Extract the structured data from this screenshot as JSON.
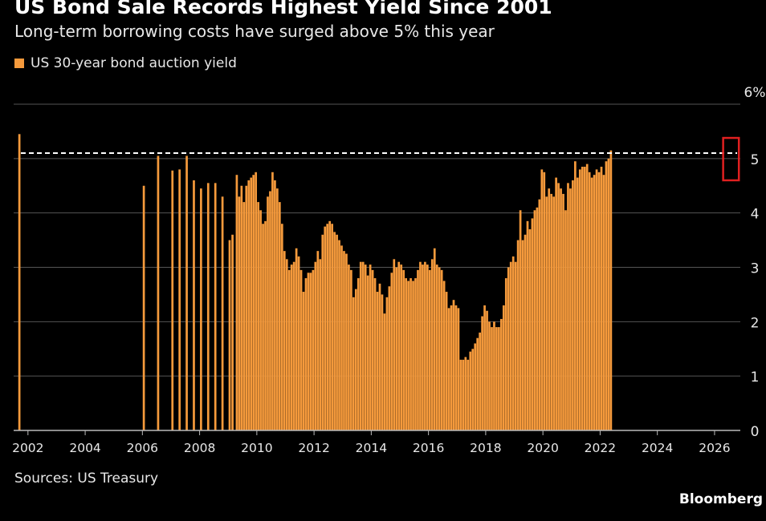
{
  "chart_data": {
    "type": "bar",
    "title": "US Bond Sale Records Highest Yield Since 2001",
    "subtitle": "Long-term borrowing costs have surged above 5% this year",
    "series": [
      {
        "name": "US 30-year bond auction yield",
        "color": "#f59a3c"
      }
    ],
    "y_unit_suffix": "%",
    "ylim": [
      0,
      6
    ],
    "yticks": [
      0,
      1,
      2,
      3,
      4,
      5,
      6
    ],
    "xlim": [
      2001.5,
      2026.9
    ],
    "xticks": [
      "2002",
      "2004",
      "2006",
      "2008",
      "2010",
      "2012",
      "2014",
      "2016",
      "2018",
      "2020",
      "2022",
      "2024",
      "2026"
    ],
    "reference_line": {
      "value": 5.1,
      "style": "dashed"
    },
    "highlight_range": {
      "from": 2026.3,
      "to": 2026.85,
      "color": "#e02020"
    },
    "grid": true,
    "sparse_points": [
      {
        "x": 2001.7,
        "y": 5.45
      },
      {
        "x": 2006.05,
        "y": 4.5
      },
      {
        "x": 2006.55,
        "y": 5.05
      },
      {
        "x": 2007.05,
        "y": 4.78
      },
      {
        "x": 2007.3,
        "y": 4.8
      },
      {
        "x": 2007.55,
        "y": 5.05
      },
      {
        "x": 2007.8,
        "y": 4.6
      },
      {
        "x": 2008.05,
        "y": 4.45
      },
      {
        "x": 2008.3,
        "y": 4.55
      },
      {
        "x": 2008.55,
        "y": 4.55
      },
      {
        "x": 2008.8,
        "y": 4.3
      },
      {
        "x": 2009.05,
        "y": 3.5
      },
      {
        "x": 2009.15,
        "y": 3.6
      }
    ],
    "monthly_start": 2009.3,
    "monthly_step": 0.0833,
    "monthly_values": [
      4.7,
      4.3,
      4.5,
      4.2,
      4.5,
      4.6,
      4.65,
      4.7,
      4.75,
      4.2,
      4.05,
      3.8,
      3.85,
      4.3,
      4.4,
      4.75,
      4.6,
      4.45,
      4.2,
      3.8,
      3.3,
      3.15,
      2.95,
      3.05,
      3.1,
      3.35,
      3.2,
      2.95,
      2.55,
      2.8,
      2.9,
      2.9,
      2.95,
      3.1,
      3.3,
      3.15,
      3.6,
      3.75,
      3.8,
      3.85,
      3.8,
      3.65,
      3.6,
      3.5,
      3.4,
      3.3,
      3.25,
      3.05,
      2.95,
      2.45,
      2.6,
      2.8,
      3.1,
      3.1,
      3.05,
      2.85,
      3.05,
      2.95,
      2.8,
      2.55,
      2.7,
      2.5,
      2.15,
      2.45,
      2.65,
      2.9,
      3.15,
      3.0,
      3.1,
      3.05,
      2.95,
      2.8,
      2.75,
      2.8,
      2.75,
      2.8,
      2.95,
      3.1,
      3.05,
      3.1,
      3.05,
      2.95,
      3.15,
      3.35,
      3.05,
      3.0,
      2.95,
      2.75,
      2.55,
      2.25,
      2.3,
      2.4,
      2.3,
      2.25,
      1.3,
      1.3,
      1.35,
      1.3,
      1.45,
      1.5,
      1.6,
      1.7,
      1.8,
      2.1,
      2.3,
      2.2,
      2.0,
      1.9,
      2.0,
      1.9,
      1.9,
      2.05,
      2.3,
      2.8,
      3.0,
      3.1,
      3.2,
      3.1,
      3.5,
      4.05,
      3.5,
      3.6,
      3.85,
      3.7,
      3.9,
      4.05,
      4.1,
      4.25,
      4.8,
      4.75,
      4.3,
      4.45,
      4.35,
      4.3,
      4.65,
      4.55,
      4.45,
      4.35,
      4.05,
      4.55,
      4.45,
      4.6,
      4.95,
      4.65,
      4.8,
      4.85,
      4.85,
      4.9,
      4.75,
      4.65,
      4.7,
      4.8,
      4.75,
      4.85,
      4.7,
      4.95,
      5.0,
      5.15
    ]
  },
  "footer": {
    "source": "Sources: US Treasury",
    "brand": "Bloomberg"
  }
}
